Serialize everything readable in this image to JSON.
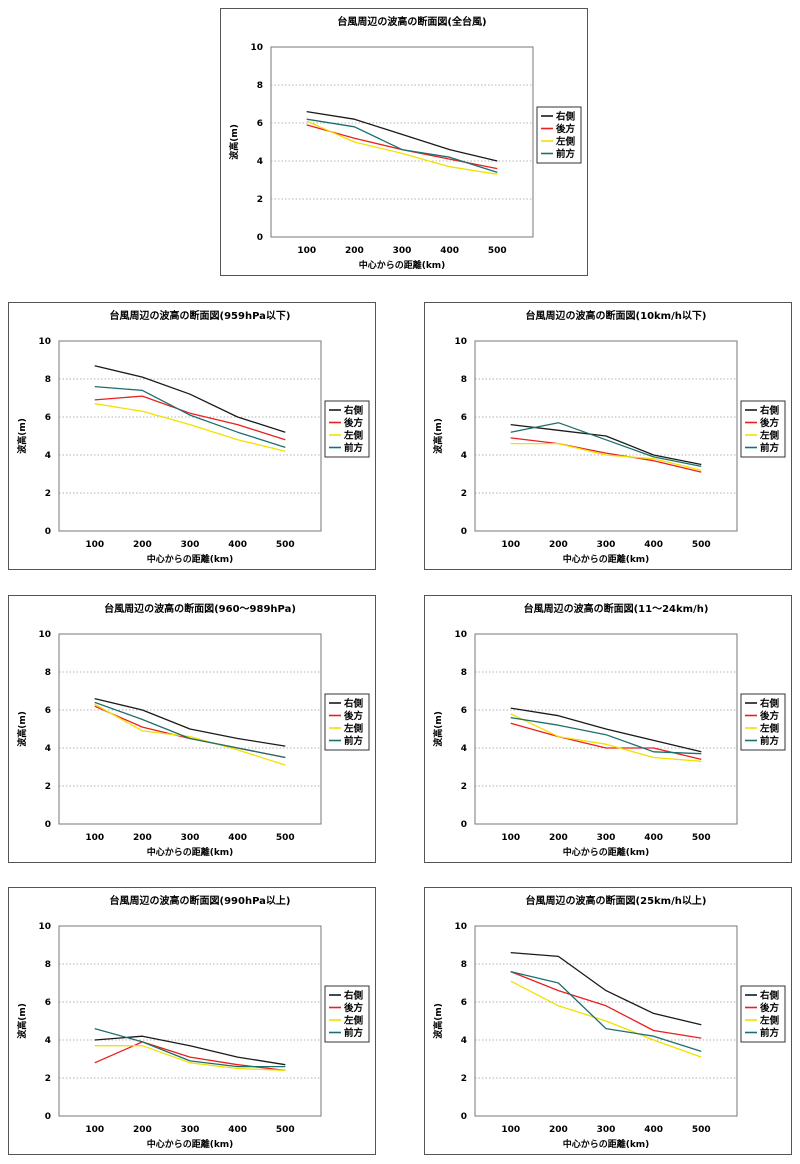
{
  "chart_data": [
    {
      "type": "line",
      "title": "台風周辺の波高の断面図(全台風)",
      "xlabel": "中心からの距離(km)",
      "ylabel": "波高(m)",
      "categories": [
        100,
        200,
        300,
        400,
        500
      ],
      "ylim": [
        0,
        10
      ],
      "yticks": [
        0,
        2,
        4,
        6,
        8,
        10
      ],
      "grid": true,
      "legend": "right",
      "series": [
        {
          "name": "右側",
          "color": "#1a1a1a",
          "values": [
            6.6,
            6.2,
            5.4,
            4.6,
            4.0
          ]
        },
        {
          "name": "後方",
          "color": "#e8201e",
          "values": [
            5.9,
            5.2,
            4.6,
            4.1,
            3.6
          ]
        },
        {
          "name": "左側",
          "color": "#f2e000",
          "values": [
            6.1,
            5.0,
            4.4,
            3.7,
            3.3
          ]
        },
        {
          "name": "前方",
          "color": "#1d6e6e",
          "values": [
            6.2,
            5.8,
            4.6,
            4.2,
            3.4
          ]
        }
      ]
    },
    {
      "type": "line",
      "title": "台風周辺の波高の断面図(959hPa以下)",
      "xlabel": "中心からの距離(km)",
      "ylabel": "波高(m)",
      "categories": [
        100,
        200,
        300,
        400,
        500
      ],
      "ylim": [
        0,
        10
      ],
      "yticks": [
        0,
        2,
        4,
        6,
        8,
        10
      ],
      "grid": true,
      "legend": "right",
      "series": [
        {
          "name": "右側",
          "color": "#1a1a1a",
          "values": [
            8.7,
            8.1,
            7.2,
            6.0,
            5.2
          ]
        },
        {
          "name": "後方",
          "color": "#e8201e",
          "values": [
            6.9,
            7.1,
            6.2,
            5.6,
            4.8
          ]
        },
        {
          "name": "左側",
          "color": "#f2e000",
          "values": [
            6.7,
            6.3,
            5.6,
            4.8,
            4.2
          ]
        },
        {
          "name": "前方",
          "color": "#1d6e6e",
          "values": [
            7.6,
            7.4,
            6.1,
            5.2,
            4.4
          ]
        }
      ]
    },
    {
      "type": "line",
      "title": "台風周辺の波高の断面図(10km/h以下)",
      "xlabel": "中心からの距離(km)",
      "ylabel": "波高(m)",
      "categories": [
        100,
        200,
        300,
        400,
        500
      ],
      "ylim": [
        0,
        10
      ],
      "yticks": [
        0,
        2,
        4,
        6,
        8,
        10
      ],
      "grid": true,
      "legend": "right",
      "series": [
        {
          "name": "右側",
          "color": "#1a1a1a",
          "values": [
            5.6,
            5.3,
            5.0,
            4.0,
            3.5
          ]
        },
        {
          "name": "後方",
          "color": "#e8201e",
          "values": [
            4.9,
            4.6,
            4.1,
            3.7,
            3.1
          ]
        },
        {
          "name": "左側",
          "color": "#f2e000",
          "values": [
            4.6,
            4.6,
            4.0,
            3.8,
            3.2
          ]
        },
        {
          "name": "前方",
          "color": "#1d6e6e",
          "values": [
            5.2,
            5.7,
            4.8,
            3.9,
            3.4
          ]
        }
      ]
    },
    {
      "type": "line",
      "title": "台風周辺の波高の断面図(960～989hPa)",
      "xlabel": "中心からの距離(km)",
      "ylabel": "波高(m)",
      "categories": [
        100,
        200,
        300,
        400,
        500
      ],
      "ylim": [
        0,
        10
      ],
      "yticks": [
        0,
        2,
        4,
        6,
        8,
        10
      ],
      "grid": true,
      "legend": "right",
      "series": [
        {
          "name": "右側",
          "color": "#1a1a1a",
          "values": [
            6.6,
            6.0,
            5.0,
            4.5,
            4.1
          ]
        },
        {
          "name": "後方",
          "color": "#e8201e",
          "values": [
            6.2,
            5.1,
            4.5,
            4.0,
            3.5
          ]
        },
        {
          "name": "左側",
          "color": "#f2e000",
          "values": [
            6.3,
            4.9,
            4.6,
            3.9,
            3.1
          ]
        },
        {
          "name": "前方",
          "color": "#1d6e6e",
          "values": [
            6.4,
            5.5,
            4.5,
            4.0,
            3.5
          ]
        }
      ]
    },
    {
      "type": "line",
      "title": "台風周辺の波高の断面図(11～24km/h)",
      "xlabel": "中心からの距離(km)",
      "ylabel": "波高(m)",
      "categories": [
        100,
        200,
        300,
        400,
        500
      ],
      "ylim": [
        0,
        10
      ],
      "yticks": [
        0,
        2,
        4,
        6,
        8,
        10
      ],
      "grid": true,
      "legend": "right",
      "series": [
        {
          "name": "右側",
          "color": "#1a1a1a",
          "values": [
            6.1,
            5.7,
            5.0,
            4.4,
            3.8
          ]
        },
        {
          "name": "後方",
          "color": "#e8201e",
          "values": [
            5.3,
            4.6,
            4.0,
            4.0,
            3.4
          ]
        },
        {
          "name": "左側",
          "color": "#f2e000",
          "values": [
            5.8,
            4.6,
            4.2,
            3.5,
            3.3
          ]
        },
        {
          "name": "前方",
          "color": "#1d6e6e",
          "values": [
            5.6,
            5.2,
            4.7,
            3.8,
            3.7
          ]
        }
      ]
    },
    {
      "type": "line",
      "title": "台風周辺の波高の断面図(990hPa以上)",
      "xlabel": "中心からの距離(km)",
      "ylabel": "波高(m)",
      "categories": [
        100,
        200,
        300,
        400,
        500
      ],
      "ylim": [
        0,
        10
      ],
      "yticks": [
        0,
        2,
        4,
        6,
        8,
        10
      ],
      "grid": true,
      "legend": "right",
      "series": [
        {
          "name": "右側",
          "color": "#1a1a1a",
          "values": [
            4.0,
            4.2,
            3.7,
            3.1,
            2.7
          ]
        },
        {
          "name": "後方",
          "color": "#e8201e",
          "values": [
            2.8,
            3.9,
            3.1,
            2.7,
            2.4
          ]
        },
        {
          "name": "左側",
          "color": "#f2e000",
          "values": [
            3.7,
            3.7,
            2.8,
            2.5,
            2.4
          ]
        },
        {
          "name": "前方",
          "color": "#1d6e6e",
          "values": [
            4.6,
            3.9,
            2.9,
            2.6,
            2.6
          ]
        }
      ]
    },
    {
      "type": "line",
      "title": "台風周辺の波高の断面図(25km/h以上)",
      "xlabel": "中心からの距離(km)",
      "ylabel": "波高(m)",
      "categories": [
        100,
        200,
        300,
        400,
        500
      ],
      "ylim": [
        0,
        10
      ],
      "yticks": [
        0,
        2,
        4,
        6,
        8,
        10
      ],
      "grid": true,
      "legend": "right",
      "series": [
        {
          "name": "右側",
          "color": "#1a1a1a",
          "values": [
            8.6,
            8.4,
            6.6,
            5.4,
            4.8
          ]
        },
        {
          "name": "後方",
          "color": "#e8201e",
          "values": [
            7.6,
            6.6,
            5.8,
            4.5,
            4.1
          ]
        },
        {
          "name": "左側",
          "color": "#f2e000",
          "values": [
            7.1,
            5.8,
            5.0,
            4.0,
            3.1
          ]
        },
        {
          "name": "前方",
          "color": "#1d6e6e",
          "values": [
            7.6,
            7.0,
            4.6,
            4.2,
            3.4
          ]
        }
      ]
    }
  ]
}
